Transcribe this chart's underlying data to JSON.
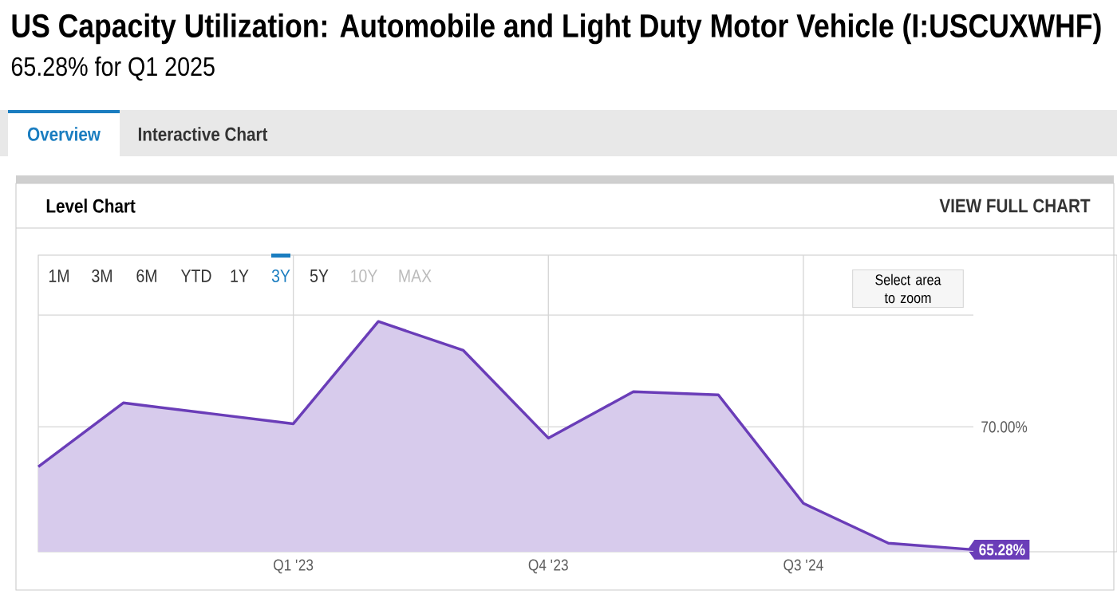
{
  "chart_data": {
    "type": "area",
    "title": "US Capacity Utilization: Automobile and Light Duty Motor Vehicle (I:USCUXWHF)",
    "subtitle": "65.28% for Q1 2025",
    "categories": [
      null,
      null,
      null,
      "Q1 '23",
      null,
      null,
      "Q4 '23",
      null,
      null,
      "Q3 '24",
      null,
      null
    ],
    "series": [
      {
        "color": "#6a3db8",
        "values": [
          68.47,
          70.92,
          70.52,
          70.12,
          74.05,
          72.94,
          69.57,
          71.35,
          71.23,
          67.06,
          65.53,
          65.28
        ]
      }
    ],
    "ylim": [
      65.2,
      76.6
    ],
    "yticks": [
      {
        "value": 65.28,
        "label": "65.28%"
      },
      {
        "value": 70,
        "label": "70.00%"
      },
      {
        "value": 74.3,
        "label": null
      }
    ],
    "grid": true,
    "annotations": [
      "Overview",
      "Interactive Chart",
      "Level Chart",
      "VIEW FULL CHART",
      "1M",
      "3M",
      "6M",
      "YTD",
      "1Y",
      "3Y",
      "5Y",
      "10Y",
      "MAX",
      "Select area to zoom"
    ]
  }
}
